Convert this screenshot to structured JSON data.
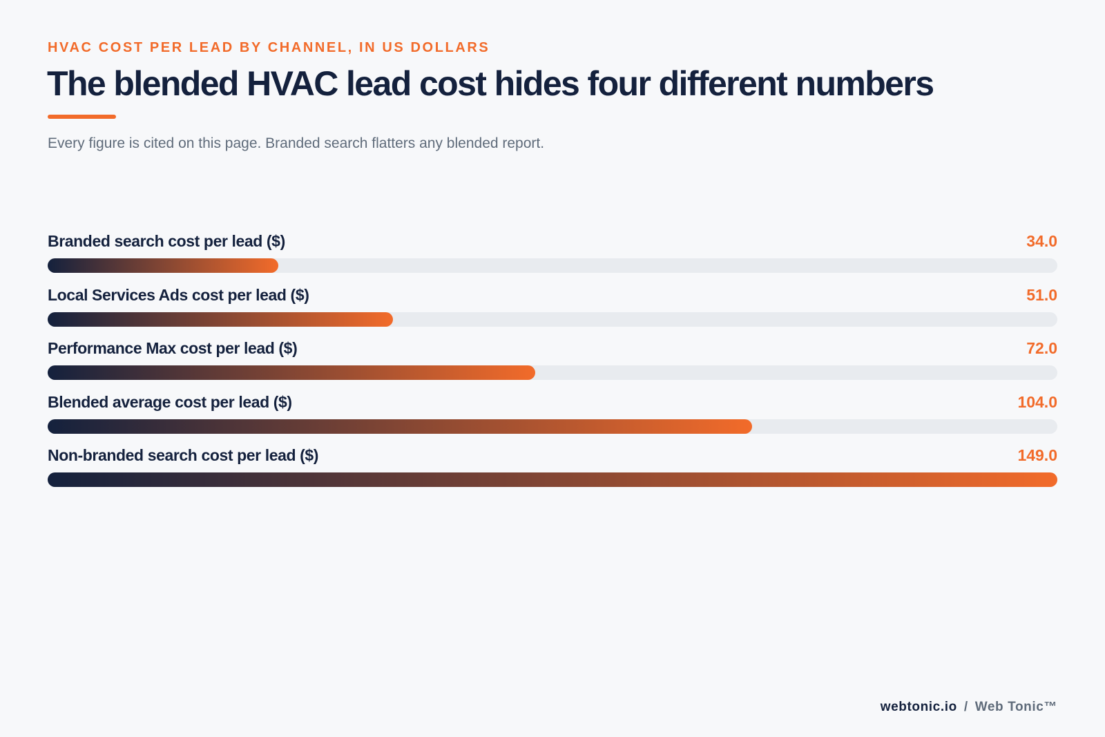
{
  "header": {
    "eyebrow": "HVAC COST PER LEAD BY CHANNEL, IN US DOLLARS",
    "title": "The blended HVAC lead cost hides four different numbers",
    "subtitle": "Every figure is cited on this page. Branded search flatters any blended report."
  },
  "chart_data": {
    "type": "bar",
    "orientation": "horizontal",
    "title": "The blended HVAC lead cost hides four different numbers",
    "subtitle": "Every figure is cited on this page. Branded search flatters any blended report.",
    "categories": [
      "Branded search cost per lead ($)",
      "Local Services Ads cost per lead ($)",
      "Performance Max cost per lead ($)",
      "Blended average cost per lead ($)",
      "Non-branded search cost per lead ($)"
    ],
    "values": [
      34.0,
      51.0,
      72.0,
      104.0,
      149.0
    ],
    "value_labels": [
      "34.0",
      "51.0",
      "72.0",
      "104.0",
      "149.0"
    ],
    "xlim": [
      0,
      149
    ],
    "grid": false,
    "legend": "none",
    "colors": {
      "bar_start": "#14213d",
      "bar_end": "#f26b2a",
      "track": "#e8ebef",
      "value_text": "#f26b2a"
    }
  },
  "footer": {
    "site": "webtonic.io",
    "separator": "/",
    "brand": "Web Tonic™"
  }
}
